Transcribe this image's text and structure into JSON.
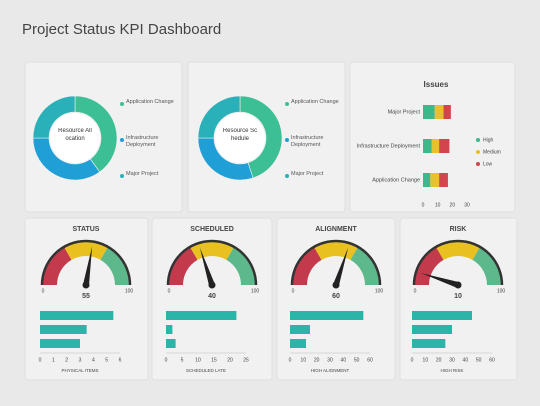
{
  "title": "Project Status KPI Dashboard",
  "chart_data": [
    {
      "type": "donut",
      "center_label": "Resource Allocation",
      "categories": [
        "Application Change",
        "Infrastructure Deployment",
        "Major Project"
      ],
      "values": [
        40,
        35,
        25
      ],
      "colors": [
        "#3cbf95",
        "#1f9fd6",
        "#2ab0b8"
      ]
    },
    {
      "type": "donut",
      "center_label": "Resource Schedule",
      "categories": [
        "Application Change",
        "Infrastructure Deployment",
        "Major Project"
      ],
      "values": [
        45,
        30,
        25
      ],
      "colors": [
        "#3cbf95",
        "#1f9fd6",
        "#2ab0b8"
      ]
    },
    {
      "type": "stackedbar",
      "title": "Issues",
      "categories": [
        "Major Project",
        "Infrastructure Deployment",
        "Application Change"
      ],
      "series": [
        {
          "name": "High",
          "color": "#3cb88a",
          "values": [
            8,
            6,
            5
          ]
        },
        {
          "name": "Medium",
          "color": "#e6c12a",
          "values": [
            6,
            5,
            6
          ]
        },
        {
          "name": "Low",
          "color": "#d2454f",
          "values": [
            5,
            7,
            6
          ]
        }
      ],
      "xlim": [
        0,
        30
      ],
      "xticks": [
        0,
        10,
        20,
        30
      ]
    },
    {
      "type": "gauge",
      "title": "STATUS",
      "value": 55,
      "ylim": [
        0,
        100
      ],
      "yticks": [
        0,
        100
      ],
      "colors": [
        "#c23a4c",
        "#e8c01f",
        "#5db98b"
      ]
    },
    {
      "type": "gauge",
      "title": "SCHEDULED",
      "value": 40,
      "ylim": [
        0,
        100
      ],
      "yticks": [
        0,
        100
      ],
      "colors": [
        "#c23a4c",
        "#e8c01f",
        "#5db98b"
      ]
    },
    {
      "type": "gauge",
      "title": "ALIGNMENT",
      "value": 60,
      "ylim": [
        0,
        100
      ],
      "yticks": [
        0,
        100
      ],
      "colors": [
        "#c23a4c",
        "#e8c01f",
        "#5db98b"
      ]
    },
    {
      "type": "gauge",
      "title": "RISK",
      "value": 10,
      "ylim": [
        0,
        100
      ],
      "yticks": [
        0,
        100
      ],
      "colors": [
        "#c23a4c",
        "#e8c01f",
        "#5db98b"
      ]
    },
    {
      "type": "hbar",
      "values": [
        5.5,
        3.5,
        3
      ],
      "color": "#2bb5a8",
      "xlim": [
        0,
        6
      ],
      "xticks": [
        0,
        1,
        2,
        3,
        4,
        5,
        6
      ],
      "xlabel": "PHYSICAL ITEMS"
    },
    {
      "type": "hbar",
      "values": [
        22,
        2,
        3
      ],
      "color": "#2bb5a8",
      "xlim": [
        0,
        25
      ],
      "xticks": [
        0,
        5,
        10,
        15,
        20,
        25
      ],
      "xlabel": "SCHEDULED LATE"
    },
    {
      "type": "hbar",
      "values": [
        55,
        15,
        12
      ],
      "color": "#2bb5a8",
      "xlim": [
        0,
        60
      ],
      "xticks": [
        0,
        10,
        20,
        30,
        40,
        50,
        60
      ],
      "xlabel": "HIGH ALIGNMENT"
    },
    {
      "type": "hbar",
      "values": [
        45,
        30,
        25
      ],
      "color": "#2bb5a8",
      "xlim": [
        0,
        60
      ],
      "xticks": [
        0,
        10,
        20,
        30,
        40,
        50,
        60
      ],
      "xlabel": "HIGH RISK"
    }
  ]
}
